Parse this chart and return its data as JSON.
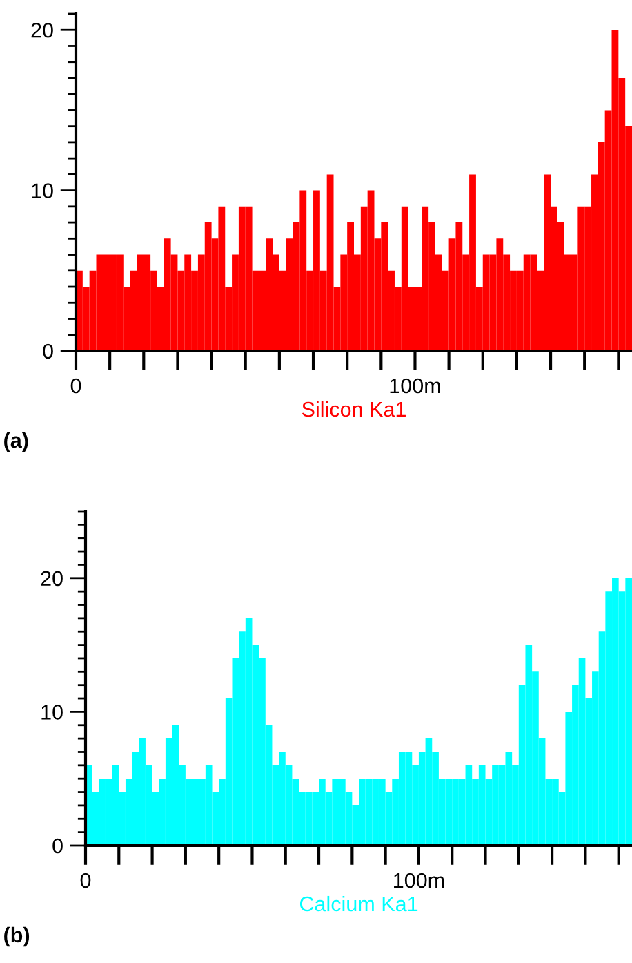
{
  "chart_data": [
    {
      "type": "histogram",
      "xlabel": "Silicon Ka1",
      "annotations": [
        "(a)"
      ],
      "color": "#ff0000",
      "bins": [
        0,
        2,
        4,
        6,
        8,
        10,
        12,
        14,
        16,
        18,
        20,
        22,
        24,
        26,
        28,
        30,
        32,
        34,
        36,
        38,
        40,
        42,
        44,
        46,
        48,
        50,
        52,
        54,
        56,
        58,
        60,
        62,
        64,
        66,
        68,
        70,
        72,
        74,
        76,
        78,
        80,
        82,
        84,
        86,
        88,
        90,
        92,
        94,
        96,
        98,
        100,
        102,
        104,
        106,
        108,
        110,
        112,
        114,
        116,
        118,
        120,
        122,
        124,
        126,
        128,
        130,
        132,
        134,
        136,
        138,
        140,
        142,
        144,
        146,
        148,
        150,
        152,
        154,
        156,
        158,
        160,
        162,
        164
      ],
      "values": [
        5,
        4,
        5,
        6,
        6,
        6,
        6,
        4,
        5,
        6,
        6,
        5,
        4,
        7,
        6,
        5,
        6,
        5,
        6,
        8,
        7,
        9,
        4,
        6,
        9,
        9,
        5,
        5,
        7,
        6,
        5,
        7,
        8,
        10,
        5,
        10,
        5,
        11,
        4,
        6,
        8,
        6,
        9,
        10,
        7,
        8,
        5,
        4,
        9,
        4,
        4,
        9,
        8,
        6,
        5,
        7,
        8,
        6,
        11,
        4,
        6,
        6,
        7,
        6,
        5,
        5,
        6,
        6,
        5,
        11,
        9,
        8,
        6,
        6,
        9,
        9,
        11,
        13,
        15,
        20,
        17,
        14
      ],
      "xlim": [
        0,
        164
      ],
      "ylim": [
        0,
        21
      ],
      "xticks": [
        0,
        {
          "value": 10,
          "label": null
        },
        {
          "value": 20,
          "label": null
        },
        {
          "value": 30,
          "label": null
        },
        {
          "value": 40,
          "label": null
        },
        {
          "value": 50,
          "label": null
        },
        {
          "value": 60,
          "label": null
        },
        {
          "value": 70,
          "label": null
        },
        {
          "value": 80,
          "label": null
        },
        {
          "value": 90,
          "label": null
        },
        {
          "value": 100,
          "label": "100m"
        },
        {
          "value": 110,
          "label": null
        },
        {
          "value": 120,
          "label": null
        },
        {
          "value": 130,
          "label": null
        },
        {
          "value": 140,
          "label": null
        },
        {
          "value": 150,
          "label": null
        },
        {
          "value": 160,
          "label": null
        }
      ],
      "yticks": [
        0,
        10,
        20
      ],
      "grid": false
    },
    {
      "type": "histogram",
      "xlabel": "Calcium Ka1",
      "annotations": [
        "(b)"
      ],
      "color": "#00ffff",
      "bins": [
        0,
        2,
        4,
        6,
        8,
        10,
        12,
        14,
        16,
        18,
        20,
        22,
        24,
        26,
        28,
        30,
        32,
        34,
        36,
        38,
        40,
        42,
        44,
        46,
        48,
        50,
        52,
        54,
        56,
        58,
        60,
        62,
        64,
        66,
        68,
        70,
        72,
        74,
        76,
        78,
        80,
        82,
        84,
        86,
        88,
        90,
        92,
        94,
        96,
        98,
        100,
        102,
        104,
        106,
        108,
        110,
        112,
        114,
        116,
        118,
        120,
        122,
        124,
        126,
        128,
        130,
        132,
        134,
        136,
        138,
        140,
        142,
        144,
        146,
        148,
        150,
        152,
        154,
        156,
        158,
        160,
        162,
        164
      ],
      "values": [
        6,
        4,
        5,
        5,
        6,
        4,
        5,
        7,
        8,
        6,
        4,
        5,
        8,
        9,
        6,
        5,
        5,
        5,
        6,
        4,
        5,
        11,
        14,
        16,
        17,
        15,
        14,
        9,
        6,
        7,
        6,
        5,
        4,
        4,
        4,
        5,
        4,
        5,
        5,
        4,
        3,
        5,
        5,
        5,
        5,
        4,
        5,
        7,
        7,
        6,
        7,
        8,
        7,
        5,
        5,
        5,
        5,
        6,
        5,
        6,
        5,
        6,
        6,
        7,
        6,
        12,
        15,
        13,
        8,
        5,
        5,
        4,
        10,
        12,
        14,
        11,
        13,
        16,
        19,
        20,
        19,
        20
      ],
      "xlim": [
        0,
        164
      ],
      "ylim": [
        0,
        25
      ],
      "xticks": [
        0,
        {
          "value": 10,
          "label": null
        },
        {
          "value": 20,
          "label": null
        },
        {
          "value": 30,
          "label": null
        },
        {
          "value": 40,
          "label": null
        },
        {
          "value": 50,
          "label": null
        },
        {
          "value": 60,
          "label": null
        },
        {
          "value": 70,
          "label": null
        },
        {
          "value": 80,
          "label": null
        },
        {
          "value": 90,
          "label": null
        },
        {
          "value": 100,
          "label": "100m"
        },
        {
          "value": 110,
          "label": null
        },
        {
          "value": 120,
          "label": null
        },
        {
          "value": 130,
          "label": null
        },
        {
          "value": 140,
          "label": null
        },
        {
          "value": 150,
          "label": null
        },
        {
          "value": 160,
          "label": null
        }
      ],
      "yticks": [
        0,
        10,
        20
      ],
      "grid": false
    }
  ]
}
